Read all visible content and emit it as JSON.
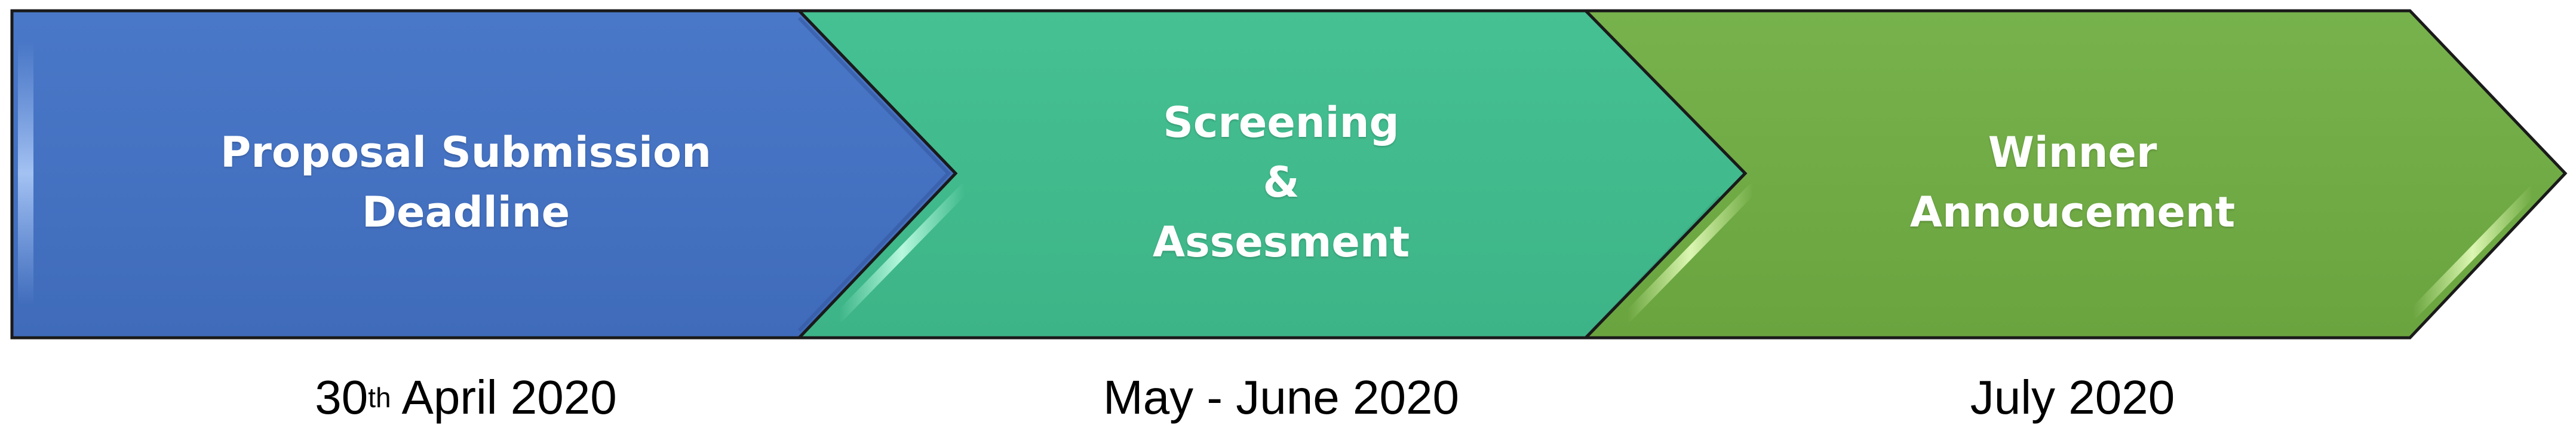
{
  "stages": [
    {
      "title_lines": [
        "Proposal Submission",
        "Deadline"
      ],
      "date_main": "30",
      "date_sup": "th",
      "date_rest": " April 2020",
      "color": "#4472C4"
    },
    {
      "title_lines": [
        "Screening",
        "&",
        "Assesment"
      ],
      "date_main": "May - June 2020",
      "color": "#42BC8E"
    },
    {
      "title_lines": [
        "Winner",
        "Annoucement"
      ],
      "date_main": "July 2020",
      "color": "#72AD47"
    }
  ]
}
